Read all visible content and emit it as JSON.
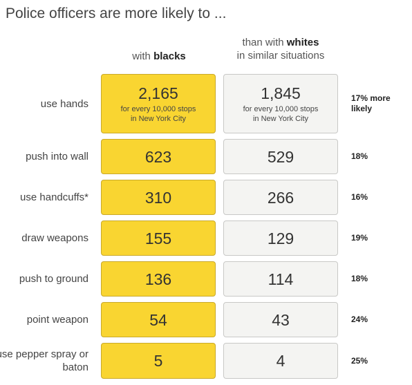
{
  "chart_data": {
    "type": "table",
    "title": "Police officers are more likely to ...",
    "columns": {
      "black": {
        "prefix": "with ",
        "bold": "blacks",
        "suffix": ""
      },
      "white": {
        "prefix": "than with ",
        "bold": "whites",
        "suffix": "in similar situations"
      }
    },
    "unit_note": {
      "line1": "for every 10,000 stops",
      "line2": "in New York City"
    },
    "rows": [
      {
        "label": "use hands",
        "black": "2,165",
        "white": "1,845",
        "diff": "17% more likely"
      },
      {
        "label": "push into wall",
        "black": "623",
        "white": "529",
        "diff": "18%"
      },
      {
        "label": "use handcuffs*",
        "black": "310",
        "white": "266",
        "diff": "16%"
      },
      {
        "label": "draw weapons",
        "black": "155",
        "white": "129",
        "diff": "19%"
      },
      {
        "label": "push to ground",
        "black": "136",
        "white": "114",
        "diff": "18%"
      },
      {
        "label": "point weapon",
        "black": "54",
        "white": "43",
        "diff": "24%"
      },
      {
        "label": "use pepper spray or baton",
        "black": "5",
        "white": "4",
        "diff": "25%"
      }
    ],
    "colors": {
      "black": "#f9d531",
      "white": "#f4f4f2"
    }
  }
}
